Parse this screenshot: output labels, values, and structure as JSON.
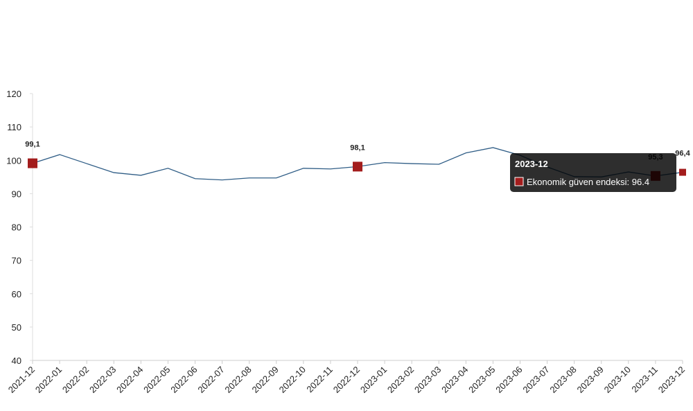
{
  "chart_data": {
    "type": "line",
    "x": [
      "2021-12",
      "2022-01",
      "2022-02",
      "2022-03",
      "2022-04",
      "2022-05",
      "2022-06",
      "2022-07",
      "2022-08",
      "2022-09",
      "2022-10",
      "2022-11",
      "2022-12",
      "2023-01",
      "2023-02",
      "2023-03",
      "2023-04",
      "2023-05",
      "2023-06",
      "2023-07",
      "2023-08",
      "2023-09",
      "2023-10",
      "2023-11",
      "2023-12"
    ],
    "series": [
      {
        "name": "Ekonomik güven endeksi",
        "color": "#2f5d86",
        "marker_color": "#a31d1d",
        "values": [
          99.1,
          101.7,
          99.0,
          96.3,
          95.5,
          97.6,
          94.5,
          94.1,
          94.7,
          94.7,
          97.6,
          97.4,
          98.1,
          99.3,
          99.0,
          98.8,
          102.2,
          103.8,
          101.5,
          98.0,
          95.1,
          95.0,
          96.5,
          95.3,
          96.4
        ],
        "value_labels": [
          "99,1",
          null,
          null,
          null,
          null,
          null,
          null,
          null,
          null,
          null,
          null,
          null,
          "98,1",
          null,
          null,
          null,
          null,
          null,
          null,
          null,
          null,
          null,
          null,
          "95,3",
          "96,4"
        ]
      }
    ],
    "ylim": [
      40,
      120
    ],
    "yticks": [
      40,
      50,
      60,
      70,
      80,
      90,
      100,
      110,
      120
    ],
    "tooltip_index": 24
  }
}
